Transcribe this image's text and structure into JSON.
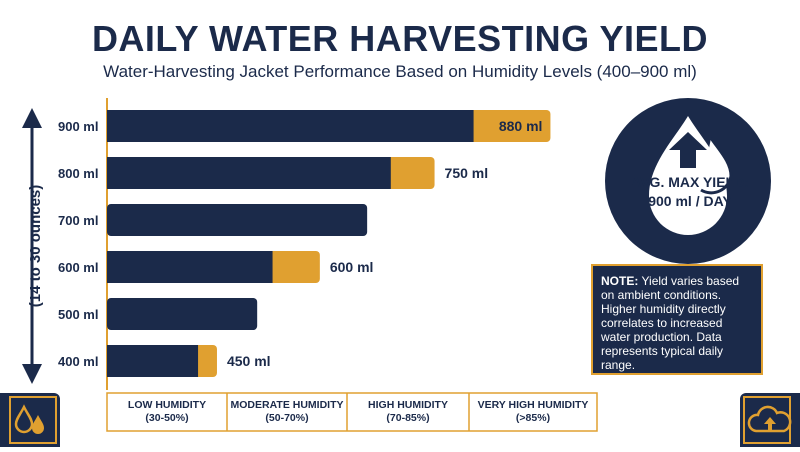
{
  "title": "DAILY WATER HARVESTING YIELD",
  "subtitle": "Water-Harvesting Jacket Performance Based on Humidity Levels (400–900 ml)",
  "badge": {
    "label": "AVG. MAX YIELD:",
    "value": "900 ml / DAY",
    "icon": "arrow-up-drop-icon"
  },
  "note": {
    "label": "NOTE:",
    "text": "Yield varies based on ambient conditions. Higher humidity directly correlates to increased water production. Data represents typical daily range."
  },
  "icons": {
    "bottom_left": "water-drops-icon",
    "bottom_right": "cloud-upload-icon"
  },
  "colors": {
    "navy": "#1b2a4a",
    "gold": "#e0a030"
  },
  "chart_data": {
    "type": "bar",
    "orientation": "horizontal",
    "yticks": [
      "900 ml",
      "800 ml",
      "700 ml",
      "600 ml",
      "500 ml",
      "400 ml"
    ],
    "ylabel": "(14 to 30 ounces)",
    "categories": [
      "LOW HUMIDITY (30-50%)",
      "MODERATE HUMIDITY (50-70%)",
      "HIGH HUMIDITY (70-85%)",
      "VERY HIGH HUMIDITY (>85%)"
    ],
    "category_lines": [
      [
        "LOW HUMIDITY",
        "(30-50%)"
      ],
      [
        "MODERATE HUMIDITY",
        "(50-70%)"
      ],
      [
        "HIGH HUMIDITY",
        "(70-85%)"
      ],
      [
        "VERY HIGH HUMIDITY",
        "(>85%)"
      ]
    ],
    "xlim": [
      0,
      4
    ],
    "bars": [
      {
        "tick": "900 ml",
        "navy": 3.1,
        "total": 3.75,
        "label": "880 ml",
        "label_inside": true
      },
      {
        "tick": "800 ml",
        "navy": 2.4,
        "total": 2.77,
        "label": "750 ml",
        "label_inside": false
      },
      {
        "tick": "700 ml",
        "navy": 2.2,
        "total": 2.2,
        "label": "",
        "label_inside": false
      },
      {
        "tick": "600 ml",
        "navy": 1.4,
        "total": 1.8,
        "label": "600 ml",
        "label_inside": false
      },
      {
        "tick": "500 ml",
        "navy": 1.27,
        "total": 1.27,
        "label": "",
        "label_inside": false
      },
      {
        "tick": "400 ml",
        "navy": 0.77,
        "total": 0.93,
        "label": "450 ml",
        "label_inside": false
      }
    ],
    "grid": false
  }
}
